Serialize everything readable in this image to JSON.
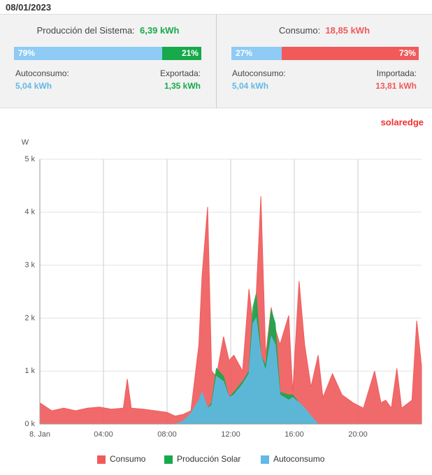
{
  "header": {
    "date": "08/01/2023"
  },
  "production": {
    "title": "Producción del Sistema:",
    "total": "6,39 kWh",
    "segments": [
      {
        "label": "79%",
        "value": 79
      },
      {
        "label": "21%",
        "value": 21
      }
    ],
    "left_label": "Autoconsumo:",
    "left_value": "5,04 kWh",
    "right_label": "Exportada:",
    "right_value": "1,35 kWh"
  },
  "consumption": {
    "title": "Consumo:",
    "total": "18,85 kWh",
    "segments": [
      {
        "label": "27%",
        "value": 27
      },
      {
        "label": "73%",
        "value": 73
      }
    ],
    "left_label": "Autoconsumo:",
    "left_value": "5,04 kWh",
    "right_label": "Importada:",
    "right_value": "13,81 kWh"
  },
  "logo": "solaredge",
  "chart_data": {
    "type": "area",
    "ylabel": "W",
    "x": [
      0,
      0.75,
      1.5,
      2.25,
      3,
      3.75,
      4.5,
      5.25,
      5.5,
      5.75,
      6.5,
      7.25,
      8,
      8.5,
      9,
      9.5,
      10,
      10.2,
      10.55,
      10.8,
      11.1,
      11.55,
      11.9,
      12.2,
      12.75,
      13.15,
      13.4,
      13.6,
      13.9,
      14.2,
      14.55,
      14.8,
      15.1,
      15.65,
      15.9,
      16.3,
      16.65,
      17.05,
      17.5,
      17.8,
      18.4,
      19,
      19.7,
      20.35,
      21.05,
      21.45,
      21.75,
      22.1,
      22.45,
      22.75,
      23.4,
      23.7,
      24
    ],
    "series": [
      {
        "name": "Consumo",
        "color": "#f05a5b",
        "values": [
          400,
          250,
          300,
          250,
          300,
          320,
          280,
          300,
          850,
          300,
          280,
          250,
          220,
          150,
          180,
          250,
          1500,
          2800,
          4100,
          1000,
          900,
          1650,
          1200,
          1300,
          1000,
          2550,
          1900,
          2400,
          4300,
          1300,
          2200,
          1800,
          1500,
          2050,
          600,
          2700,
          1500,
          700,
          1300,
          500,
          950,
          550,
          400,
          300,
          1000,
          400,
          450,
          300,
          1050,
          300,
          450,
          1950,
          1100
        ]
      },
      {
        "name": "Producción Solar",
        "color": "#17a94b",
        "values": [
          0,
          0,
          0,
          0,
          0,
          0,
          0,
          0,
          0,
          0,
          0,
          0,
          0,
          0,
          50,
          200,
          450,
          600,
          300,
          400,
          1050,
          900,
          500,
          600,
          800,
          1000,
          2200,
          2450,
          1300,
          1100,
          2150,
          1900,
          600,
          550,
          550,
          400,
          300,
          150,
          0,
          0,
          0,
          0,
          0,
          0,
          0,
          0,
          0,
          0,
          0,
          0,
          0,
          0,
          0
        ]
      },
      {
        "name": "Autoconsumo",
        "color": "#62b8e6",
        "values": [
          0,
          0,
          0,
          0,
          0,
          0,
          0,
          0,
          0,
          0,
          0,
          0,
          0,
          0,
          50,
          200,
          450,
          600,
          300,
          350,
          900,
          800,
          500,
          550,
          750,
          950,
          1900,
          2000,
          1300,
          1000,
          1650,
          1500,
          550,
          450,
          500,
          400,
          300,
          150,
          0,
          0,
          0,
          0,
          0,
          0,
          0,
          0,
          0,
          0,
          0,
          0,
          0,
          0,
          0
        ]
      }
    ],
    "xlim": [
      0,
      24
    ],
    "xticks": [
      {
        "value": 0,
        "label": "8. Jan"
      },
      {
        "value": 4,
        "label": "04:00"
      },
      {
        "value": 8,
        "label": "08:00"
      },
      {
        "value": 12,
        "label": "12:00"
      },
      {
        "value": 16,
        "label": "16:00"
      },
      {
        "value": 20,
        "label": "20:00"
      }
    ],
    "ylim": [
      0,
      5000
    ],
    "yticks": [
      {
        "value": 0,
        "label": "0 k"
      },
      {
        "value": 1000,
        "label": "1 k"
      },
      {
        "value": 2000,
        "label": "2 k"
      },
      {
        "value": 3000,
        "label": "3 k"
      },
      {
        "value": 4000,
        "label": "4 k"
      },
      {
        "value": 5000,
        "label": "5 k"
      }
    ],
    "grid": true,
    "legend": "bottom"
  }
}
